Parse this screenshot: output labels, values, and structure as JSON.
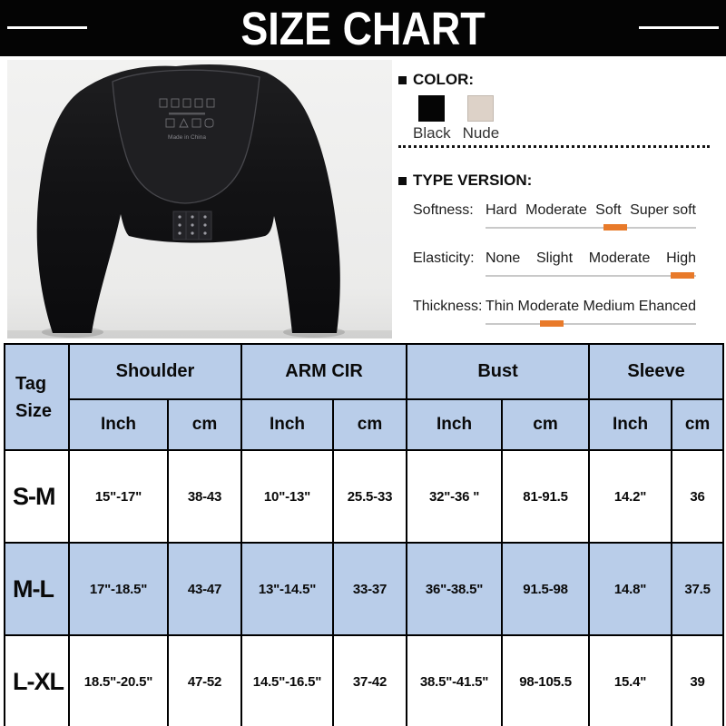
{
  "banner": {
    "title": "SIZE CHART"
  },
  "color_section": {
    "heading": "COLOR:",
    "swatches": [
      {
        "label": "Black",
        "hex": "#050505"
      },
      {
        "label": "Nude",
        "hex": "#ddd2c8"
      }
    ]
  },
  "type_version": {
    "heading": "TYPE VERSION:",
    "marker_color": "#e87a2a",
    "rows": [
      {
        "label": "Softness:",
        "options": [
          "Hard",
          "Moderate",
          "Soft",
          "Super soft"
        ],
        "selected": "Soft"
      },
      {
        "label": "Elasticity:",
        "options": [
          "None",
          "Slight",
          "Moderate",
          "High"
        ],
        "selected": "High"
      },
      {
        "label": "Thickness:",
        "options": [
          "Thin",
          "Moderate",
          "Medium",
          "Ehanced"
        ],
        "selected": "Moderate"
      }
    ]
  },
  "product": {
    "description": "Black long-sleeve shoulder / arm shaper shapewear, back view with hook-and-eye closure",
    "label_text": "Made in China"
  },
  "size_table": {
    "corner_lines": [
      "Tag",
      "Size"
    ],
    "groups": [
      "Shoulder",
      "ARM CIR",
      "Bust",
      "Sleeve"
    ],
    "units": [
      "Inch",
      "cm"
    ],
    "rows": [
      {
        "tag": "S-M",
        "values": [
          "15\"-17\"",
          "38-43",
          "10\"-13\"",
          "25.5-33",
          "32\"-36 \"",
          "81-91.5",
          "14.2\"",
          "36"
        ]
      },
      {
        "tag": "M-L",
        "values": [
          "17\"-18.5\"",
          "43-47",
          "13\"-14.5\"",
          "33-37",
          "36\"-38.5\"",
          "91.5-98",
          "14.8\"",
          "37.5"
        ]
      },
      {
        "tag": "L-XL",
        "values": [
          "18.5\"-20.5\"",
          "47-52",
          "14.5\"-16.5\"",
          "37-42",
          "38.5\"-41.5\"",
          "98-105.5",
          "15.4\"",
          "39"
        ]
      }
    ],
    "colors": {
      "header_bg": "#b9cde9",
      "alt_row_bg": "#b9cde9",
      "row_bg": "#ffffff",
      "border": "#000000"
    }
  }
}
